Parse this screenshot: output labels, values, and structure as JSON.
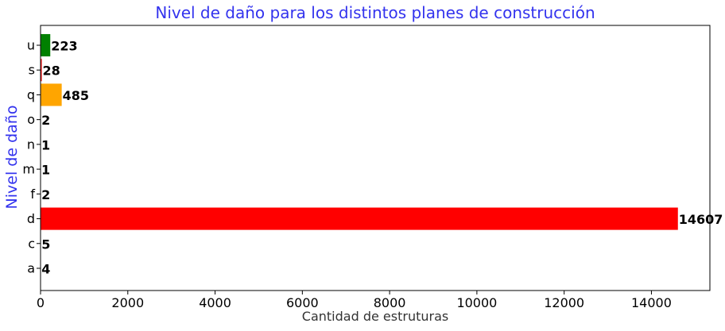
{
  "chart_data": {
    "type": "bar",
    "orientation": "horizontal",
    "title": "Nivel de daño para los distintos planes de construcción",
    "xlabel": "Cantidad de estruturas",
    "ylabel": "Nivel de daño",
    "categories": [
      "a",
      "c",
      "d",
      "f",
      "m",
      "n",
      "o",
      "q",
      "s",
      "u"
    ],
    "values": [
      4,
      5,
      14607,
      2,
      1,
      1,
      2,
      485,
      28,
      223
    ],
    "bar_colors": [
      "#ff0000",
      "#ff0000",
      "#ff0000",
      "#ff0000",
      "#ff0000",
      "#ff0000",
      "#ff0000",
      "#ffa500",
      "#ff0000",
      "#008000"
    ],
    "xlim": [
      0,
      15340
    ],
    "x_ticks": [
      0,
      2000,
      4000,
      6000,
      8000,
      10000,
      12000,
      14000
    ],
    "grid": false,
    "legend": "none",
    "title_color": "#3333ee",
    "ylabel_color": "#3333ee"
  }
}
